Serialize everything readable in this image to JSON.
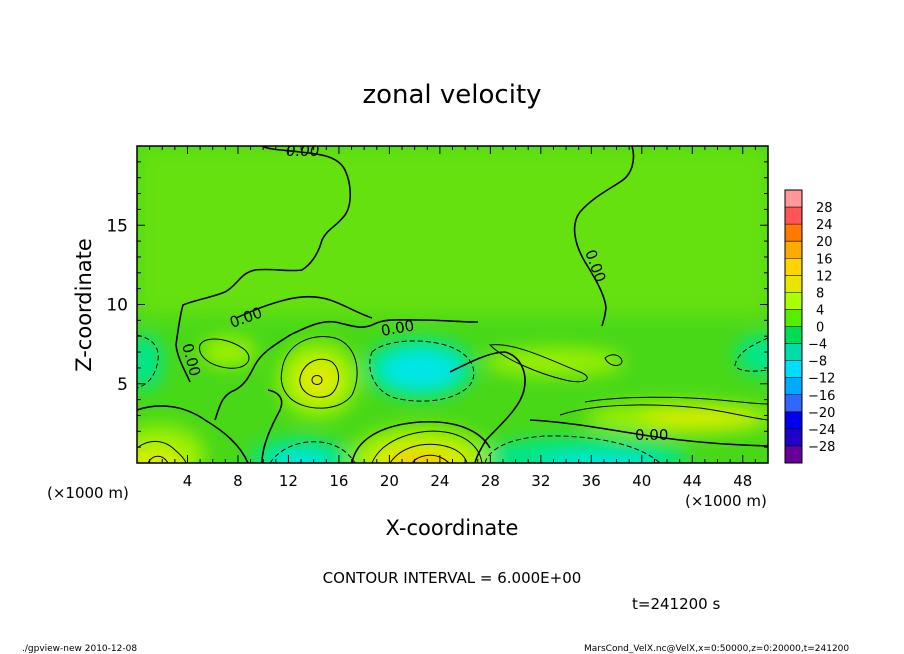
{
  "chart_data": {
    "type": "heatmap",
    "title": "zonal velocity",
    "xlabel": "X-coordinate",
    "ylabel": "Z-coordinate",
    "x_unit_left": "(×1000 m)",
    "x_unit_right": "(×1000 m)",
    "xlim": [
      0,
      50
    ],
    "ylim": [
      0,
      20
    ],
    "x_ticks": [
      4,
      8,
      12,
      16,
      20,
      24,
      28,
      32,
      36,
      40,
      44,
      48
    ],
    "y_ticks": [
      5,
      10,
      15
    ],
    "colorbar_levels": [
      28,
      24,
      20,
      16,
      12,
      8,
      4,
      0,
      -4,
      -8,
      -12,
      -16,
      -20,
      -24,
      -28
    ],
    "colorbar_colors": [
      "#ff9999",
      "#ff5555",
      "#ff7a00",
      "#ffaa00",
      "#ffd400",
      "#e6e600",
      "#aaff00",
      "#55ee00",
      "#00dd55",
      "#00ddaa",
      "#00ddff",
      "#00aaff",
      "#3366ff",
      "#0000ee",
      "#2200cc",
      "#660099"
    ],
    "contour_labels": [
      "0.00",
      "0.00",
      "0.00",
      "0.00",
      "0.00",
      "0.00"
    ],
    "field_samples": [
      {
        "x": 1.0,
        "z": 0.5,
        "u": 14
      },
      {
        "x": 22.5,
        "z": 0.5,
        "u": 18
      },
      {
        "x": 14,
        "z": 5.3,
        "u": 9
      },
      {
        "x": 22,
        "z": 6,
        "u": -10
      },
      {
        "x": 1.5,
        "z": 6.5,
        "u": -8
      },
      {
        "x": 48,
        "z": 6.5,
        "u": -6
      },
      {
        "x": 14,
        "z": 1,
        "u": -9
      },
      {
        "x": 38,
        "z": 0.5,
        "u": -10
      },
      {
        "x": 44,
        "z": 2.5,
        "u": 5
      },
      {
        "x": 20,
        "z": 15,
        "u": 1
      }
    ]
  },
  "contour_interval": "CONTOUR INTERVAL = 6.000E+00",
  "time_label": "t=241200 s",
  "footer_left": "./gpview-new  2010-12-08",
  "footer_right": "MarsCond_VelX.nc@VelX,x=0:50000,z=0:20000,t=241200",
  "colors": {
    "background": "#48d818",
    "pos_light": "#9cf000",
    "pos_mid": "#e0ec00",
    "pos_strong": "#ffb400",
    "neg_light": "#00e68c",
    "neg_mid": "#00e6e6"
  }
}
